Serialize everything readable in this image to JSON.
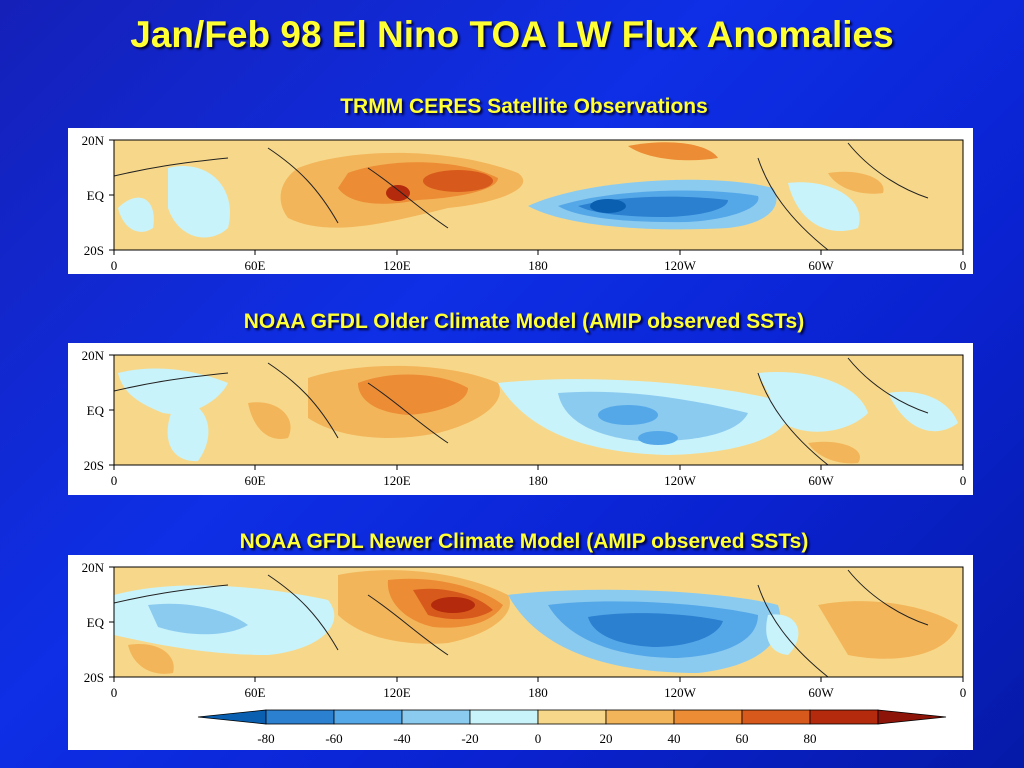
{
  "title": "Jan/Feb 98 El Nino TOA LW Flux Anomalies",
  "panels": [
    {
      "subtitle": "TRMM CERES Satellite Observations"
    },
    {
      "subtitle": "NOAA GFDL Older Climate Model (AMIP observed SSTs)"
    },
    {
      "subtitle": "NOAA GFDL Newer Climate Model (AMIP observed SSTs)"
    }
  ],
  "axes": {
    "y_ticks": [
      "20N",
      "EQ",
      "20S"
    ],
    "x_ticks": [
      "0",
      "60E",
      "120E",
      "180",
      "120W",
      "60W",
      "0"
    ]
  },
  "colorbar": {
    "ticks": [
      "-80",
      "-60",
      "-40",
      "-20",
      "0",
      "20",
      "40",
      "60",
      "80"
    ],
    "colors": [
      "#0a5fb0",
      "#2b80d0",
      "#55a8e8",
      "#8ccbf0",
      "#c9f3fa",
      "#f7d88a",
      "#f3b55a",
      "#ec8c35",
      "#d75a1c",
      "#b42a0c",
      "#8c1408"
    ]
  }
}
